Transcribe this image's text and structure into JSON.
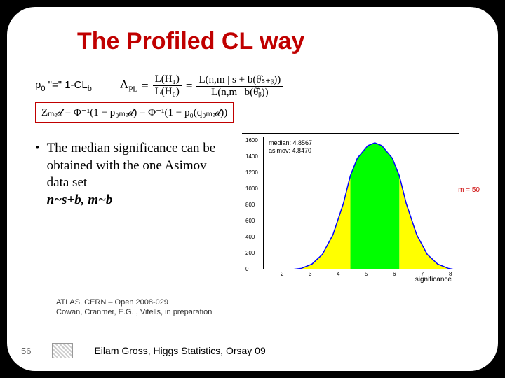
{
  "title": "The Profiled CL way",
  "p0_formula": {
    "p0": "p",
    "p0_sub": "0",
    "eq": " \"=\" 1-CL",
    "cl_sub": "b"
  },
  "lambda_formula": {
    "lhs": "Λ",
    "lhs_sub": "PL",
    "eq1": " = ",
    "frac1_num": "L(H₁)",
    "frac1_den": "L(H₀)",
    "eq2": " = ",
    "frac2_num": "L(n,m | s + b(θ̂ₛ₊ᵦ))",
    "frac2_den": "L(n,m | b(θ̂ᵦ))"
  },
  "zmed": "Zₘₑ𝒹 = Φ⁻¹(1 − p₀ₘₑ𝒹) = Φ⁻¹(1 − p₀(q₀ₘₑ𝒹))",
  "bullet": {
    "text1": "The median significance can be obtained with the one Asimov data set",
    "text2": "n~s+b, m~b"
  },
  "chart": {
    "legend1": "median: 4.8567",
    "legend2": "asimov: 4.8470",
    "m_label": "m = 50",
    "xlabel": "significance",
    "bg_color": "#ffffff",
    "curve_color": "#0000ff",
    "fill_center": "#00ff00",
    "fill_tails": "#ffff00",
    "yticks": [
      {
        "v": "1600",
        "pos": 5
      },
      {
        "v": "1400",
        "pos": 28
      },
      {
        "v": "1200",
        "pos": 51
      },
      {
        "v": "1000",
        "pos": 74
      },
      {
        "v": "800",
        "pos": 97
      },
      {
        "v": "600",
        "pos": 120
      },
      {
        "v": "400",
        "pos": 143
      },
      {
        "v": "200",
        "pos": 166
      },
      {
        "v": "0",
        "pos": 189
      }
    ],
    "xticks": [
      {
        "v": "2",
        "pos": 55
      },
      {
        "v": "3",
        "pos": 95
      },
      {
        "v": "4",
        "pos": 135
      },
      {
        "v": "5",
        "pos": 175
      },
      {
        "v": "6",
        "pos": 215
      },
      {
        "v": "7",
        "pos": 255
      },
      {
        "v": "8",
        "pos": 295
      }
    ]
  },
  "refs": {
    "line1": "ATLAS, CERN – Open 2008-029",
    "line2": "Cowan, Cranmer, E.G. , Vitells, in preparation"
  },
  "footer": {
    "slide_num": "56",
    "text": "Eilam Gross, Higgs Statistics, Orsay 09"
  }
}
